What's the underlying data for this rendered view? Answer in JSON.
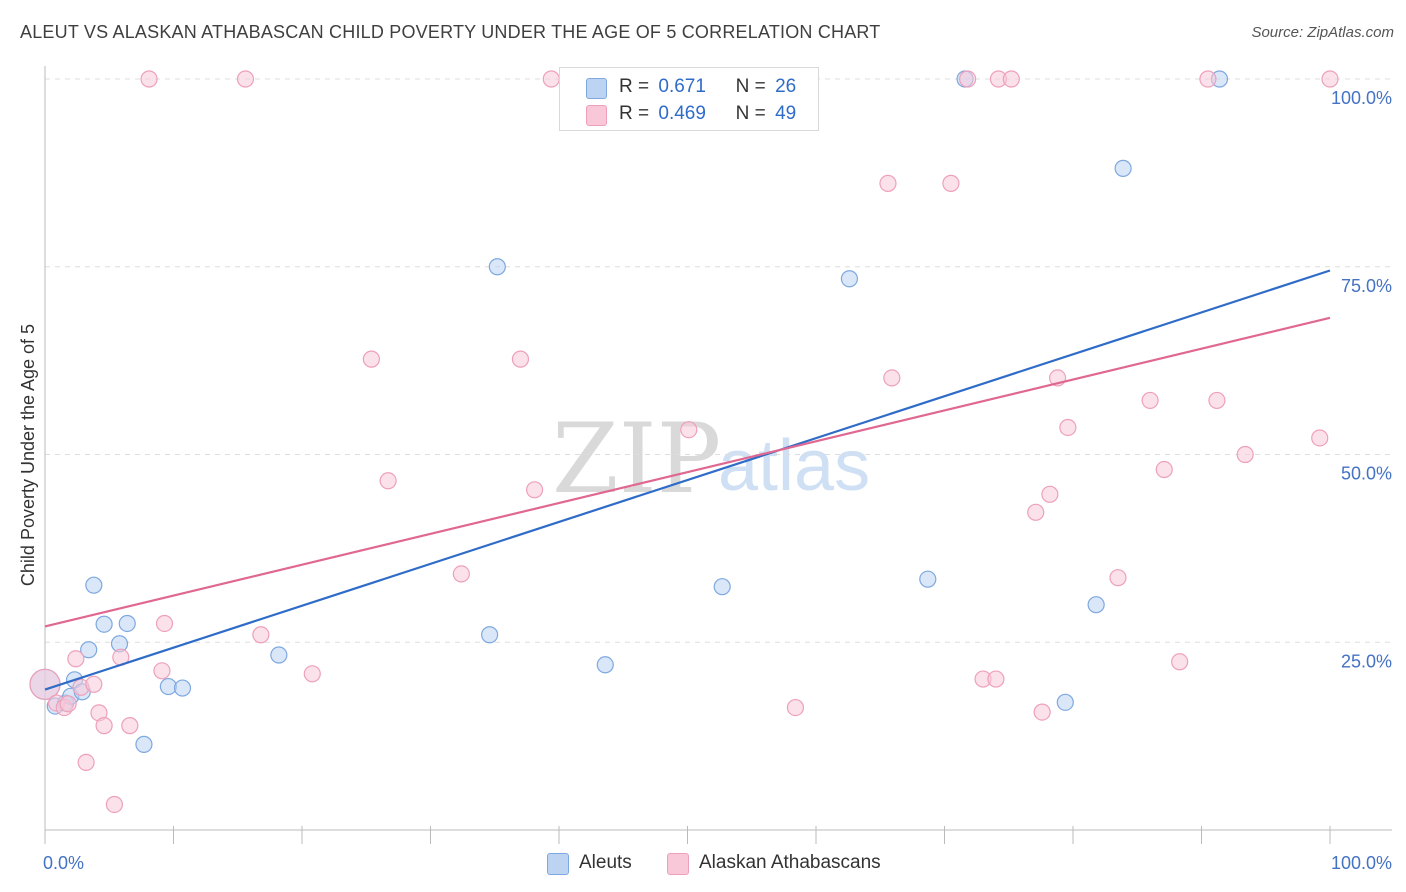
{
  "title": "ALEUT VS ALASKAN ATHABASCAN CHILD POVERTY UNDER THE AGE OF 5 CORRELATION CHART",
  "source": "Source: ZipAtlas.com",
  "watermark": {
    "zip": "ZIP",
    "atlas": "atlas"
  },
  "legend": {
    "r_label": "R =",
    "n_label": "N =",
    "series": [
      {
        "name": "Aleuts",
        "r": "0.671",
        "n": "26"
      },
      {
        "name": "Alaskan Athabascans",
        "r": "0.469",
        "n": "49"
      }
    ]
  },
  "colors": {
    "aleut_fill": "#bcd4f2",
    "aleut_stroke": "#7ea8e0",
    "aleut_line": "#2f6cc8",
    "athabascan_fill": "#f8c8d8",
    "athabascan_stroke": "#eea0ba",
    "athabascan_line": "#e06890",
    "tick_text": "#4472c4",
    "grid": "#dddddd"
  },
  "chart_data": {
    "type": "scatter",
    "title": "ALEUT VS ALASKAN ATHABASCAN CHILD POVERTY UNDER THE AGE OF 5 CORRELATION CHART",
    "xlabel": "",
    "ylabel": "Child Poverty Under the Age of 5",
    "xlim": [
      0,
      100
    ],
    "ylim": [
      0,
      100
    ],
    "x_tick_labels": [
      "0.0%",
      "100.0%"
    ],
    "y_ticks": [
      25,
      50,
      75,
      100
    ],
    "y_tick_labels": [
      "25.0%",
      "50.0%",
      "75.0%",
      "100.0%"
    ],
    "grid": "horizontal dashed",
    "legend_placement": "top-center",
    "series": [
      {
        "name": "Aleuts",
        "r": 0.671,
        "n": 26,
        "trend": {
          "x": [
            0,
            100
          ],
          "y": [
            18.7,
            74.5
          ]
        },
        "points": [
          {
            "x": 0.0,
            "y": 19.4,
            "big": true
          },
          {
            "x": 0.8,
            "y": 16.5
          },
          {
            "x": 1.6,
            "y": 16.9
          },
          {
            "x": 2.0,
            "y": 17.8
          },
          {
            "x": 2.3,
            "y": 20.0
          },
          {
            "x": 2.9,
            "y": 18.4
          },
          {
            "x": 3.4,
            "y": 24.0
          },
          {
            "x": 3.8,
            "y": 32.6
          },
          {
            "x": 4.6,
            "y": 27.4
          },
          {
            "x": 5.8,
            "y": 24.8
          },
          {
            "x": 6.4,
            "y": 27.5
          },
          {
            "x": 7.7,
            "y": 11.4
          },
          {
            "x": 9.6,
            "y": 19.1
          },
          {
            "x": 10.7,
            "y": 18.9
          },
          {
            "x": 18.2,
            "y": 23.3
          },
          {
            "x": 34.6,
            "y": 26.0
          },
          {
            "x": 35.2,
            "y": 75.0
          },
          {
            "x": 43.6,
            "y": 22.0
          },
          {
            "x": 52.7,
            "y": 32.4
          },
          {
            "x": 62.6,
            "y": 73.4
          },
          {
            "x": 68.7,
            "y": 33.4
          },
          {
            "x": 71.6,
            "y": 100.0
          },
          {
            "x": 79.4,
            "y": 17.0
          },
          {
            "x": 81.8,
            "y": 30.0
          },
          {
            "x": 83.9,
            "y": 88.1
          },
          {
            "x": 91.4,
            "y": 100.0
          }
        ]
      },
      {
        "name": "Alaskan Athabascans",
        "r": 0.469,
        "n": 49,
        "trend": {
          "x": [
            0,
            100
          ],
          "y": [
            27.1,
            68.2
          ]
        },
        "points": [
          {
            "x": 0.0,
            "y": 19.4,
            "big": true
          },
          {
            "x": 0.9,
            "y": 16.9
          },
          {
            "x": 1.5,
            "y": 16.3
          },
          {
            "x": 1.8,
            "y": 16.8
          },
          {
            "x": 2.4,
            "y": 22.8
          },
          {
            "x": 2.8,
            "y": 19.0
          },
          {
            "x": 3.2,
            "y": 9.0
          },
          {
            "x": 3.8,
            "y": 19.4
          },
          {
            "x": 4.2,
            "y": 15.6
          },
          {
            "x": 4.6,
            "y": 13.9
          },
          {
            "x": 5.4,
            "y": 3.4
          },
          {
            "x": 5.9,
            "y": 23.0
          },
          {
            "x": 6.6,
            "y": 13.9
          },
          {
            "x": 8.1,
            "y": 100.0
          },
          {
            "x": 9.1,
            "y": 21.2
          },
          {
            "x": 9.3,
            "y": 27.5
          },
          {
            "x": 15.6,
            "y": 100.0
          },
          {
            "x": 16.8,
            "y": 26.0
          },
          {
            "x": 20.8,
            "y": 20.8
          },
          {
            "x": 25.4,
            "y": 62.7
          },
          {
            "x": 26.7,
            "y": 46.5
          },
          {
            "x": 32.4,
            "y": 34.1
          },
          {
            "x": 37.0,
            "y": 62.7
          },
          {
            "x": 38.1,
            "y": 45.3
          },
          {
            "x": 39.4,
            "y": 100.0
          },
          {
            "x": 50.1,
            "y": 53.3
          },
          {
            "x": 58.4,
            "y": 16.3
          },
          {
            "x": 65.6,
            "y": 86.1
          },
          {
            "x": 65.9,
            "y": 60.2
          },
          {
            "x": 70.5,
            "y": 86.1
          },
          {
            "x": 71.8,
            "y": 100.0
          },
          {
            "x": 73.0,
            "y": 20.1
          },
          {
            "x": 74.0,
            "y": 20.1
          },
          {
            "x": 74.2,
            "y": 100.0
          },
          {
            "x": 75.2,
            "y": 100.0
          },
          {
            "x": 77.1,
            "y": 42.3
          },
          {
            "x": 77.6,
            "y": 15.7
          },
          {
            "x": 78.2,
            "y": 44.7
          },
          {
            "x": 78.8,
            "y": 60.2
          },
          {
            "x": 79.6,
            "y": 53.6
          },
          {
            "x": 83.5,
            "y": 33.6
          },
          {
            "x": 86.0,
            "y": 57.2
          },
          {
            "x": 87.1,
            "y": 48.0
          },
          {
            "x": 88.3,
            "y": 22.4
          },
          {
            "x": 90.5,
            "y": 100.0
          },
          {
            "x": 91.2,
            "y": 57.2
          },
          {
            "x": 93.4,
            "y": 50.0
          },
          {
            "x": 99.2,
            "y": 52.2
          },
          {
            "x": 100.0,
            "y": 100.0
          }
        ]
      }
    ]
  }
}
